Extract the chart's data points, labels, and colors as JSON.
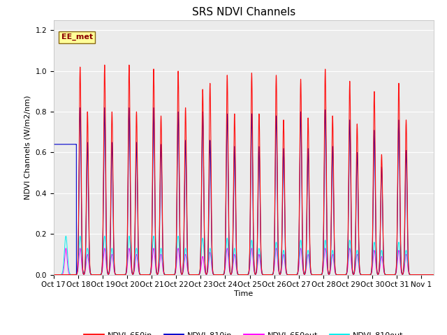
{
  "title": "SRS NDVI Channels",
  "ylabel": "NDVI Channels (W/m2/nm)",
  "xlabel": "Time",
  "ylim": [
    0.0,
    1.25
  ],
  "yticks": [
    0.0,
    0.2,
    0.4,
    0.6,
    0.8,
    1.0,
    1.2
  ],
  "xtick_labels": [
    "Oct 17",
    "Oct 18",
    "Oct 19",
    "Oct 20",
    "Oct 21",
    "Oct 22",
    "Oct 23",
    "Oct 24",
    "Oct 25",
    "Oct 26",
    "Oct 27",
    "Oct 28",
    "Oct 29",
    "Oct 30",
    "Oct 31",
    "Nov 1"
  ],
  "annotation_text": "EE_met",
  "colors": {
    "ndvi_650in": "#FF1111",
    "ndvi_810in": "#0000CC",
    "ndvi_650out": "#FF00FF",
    "ndvi_810out": "#00EEEE",
    "plot_bg": "#EBEBEB"
  },
  "legend_labels": [
    "NDVI_650in",
    "NDVI_810in",
    "NDVI_650out",
    "NDVI_810out"
  ],
  "title_fontsize": 11,
  "label_fontsize": 8,
  "tick_fontsize": 7.5,
  "pulse_data": [
    {
      "day": 1,
      "r1": 1.02,
      "b1": 0.82,
      "r2": 0.8,
      "b2": 0.65,
      "m1": 0.13,
      "c1": 0.19,
      "m2": 0.1,
      "c2": 0.13
    },
    {
      "day": 2,
      "r1": 1.03,
      "b1": 0.82,
      "r2": 0.8,
      "b2": 0.65,
      "m1": 0.13,
      "c1": 0.19,
      "m2": 0.1,
      "c2": 0.13
    },
    {
      "day": 3,
      "r1": 1.03,
      "b1": 0.82,
      "r2": 0.8,
      "b2": 0.65,
      "m1": 0.13,
      "c1": 0.19,
      "m2": 0.1,
      "c2": 0.13
    },
    {
      "day": 4,
      "r1": 1.01,
      "b1": 0.82,
      "r2": 0.78,
      "b2": 0.64,
      "m1": 0.13,
      "c1": 0.19,
      "m2": 0.1,
      "c2": 0.13
    },
    {
      "day": 5,
      "r1": 1.0,
      "b1": 0.8,
      "r2": 0.82,
      "b2": 0.66,
      "m1": 0.13,
      "c1": 0.19,
      "m2": 0.1,
      "c2": 0.13
    },
    {
      "day": 6,
      "r1": 0.91,
      "b1": 0.8,
      "r2": 0.94,
      "b2": 0.66,
      "m1": 0.09,
      "c1": 0.18,
      "m2": 0.11,
      "c2": 0.13
    },
    {
      "day": 7,
      "r1": 0.98,
      "b1": 0.79,
      "r2": 0.79,
      "b2": 0.63,
      "m1": 0.13,
      "c1": 0.18,
      "m2": 0.1,
      "c2": 0.13
    },
    {
      "day": 8,
      "r1": 0.99,
      "b1": 0.79,
      "r2": 0.79,
      "b2": 0.63,
      "m1": 0.13,
      "c1": 0.17,
      "m2": 0.1,
      "c2": 0.13
    },
    {
      "day": 9,
      "r1": 0.98,
      "b1": 0.78,
      "r2": 0.76,
      "b2": 0.62,
      "m1": 0.13,
      "c1": 0.16,
      "m2": 0.1,
      "c2": 0.12
    },
    {
      "day": 10,
      "r1": 0.96,
      "b1": 0.8,
      "r2": 0.77,
      "b2": 0.62,
      "m1": 0.13,
      "c1": 0.17,
      "m2": 0.1,
      "c2": 0.12
    },
    {
      "day": 11,
      "r1": 1.01,
      "b1": 0.81,
      "r2": 0.78,
      "b2": 0.63,
      "m1": 0.13,
      "c1": 0.17,
      "m2": 0.1,
      "c2": 0.12
    },
    {
      "day": 12,
      "r1": 0.95,
      "b1": 0.76,
      "r2": 0.74,
      "b2": 0.6,
      "m1": 0.13,
      "c1": 0.17,
      "m2": 0.1,
      "c2": 0.12
    },
    {
      "day": 13,
      "r1": 0.9,
      "b1": 0.71,
      "r2": 0.59,
      "b2": 0.53,
      "m1": 0.12,
      "c1": 0.16,
      "m2": 0.09,
      "c2": 0.12
    },
    {
      "day": 14,
      "r1": 0.94,
      "b1": 0.76,
      "r2": 0.76,
      "b2": 0.61,
      "m1": 0.12,
      "c1": 0.16,
      "m2": 0.1,
      "c2": 0.12
    }
  ]
}
